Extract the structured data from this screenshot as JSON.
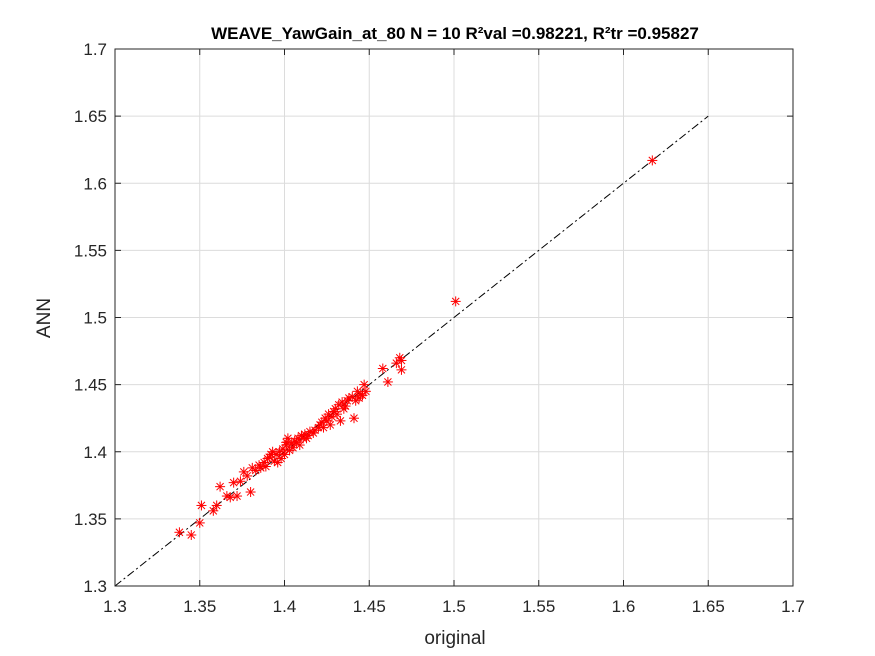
{
  "chart_data": {
    "type": "scatter",
    "title": "WEAVE_YawGain_at_80  N = 10 R²val =0.98221, R²tr =0.95827",
    "xlabel": "original",
    "ylabel": "ANN",
    "xlim": [
      1.3,
      1.7
    ],
    "ylim": [
      1.3,
      1.7
    ],
    "xticks": [
      "1.3",
      "1.35",
      "1.4",
      "1.45",
      "1.5",
      "1.55",
      "1.6",
      "1.65",
      "1.7"
    ],
    "yticks": [
      "1.3",
      "1.35",
      "1.4",
      "1.45",
      "1.5",
      "1.55",
      "1.6",
      "1.65",
      "1.7"
    ],
    "grid": true,
    "colors": {
      "points": "#ff0000",
      "reference_line": "#000000",
      "grid": "#dcdcdc"
    },
    "reference_line": {
      "style": "dash-dot",
      "x": [
        1.3,
        1.65
      ],
      "y": [
        1.3,
        1.65
      ]
    },
    "marker": "asterisk",
    "points": {
      "x": [
        1.338,
        1.345,
        1.35,
        1.351,
        1.358,
        1.36,
        1.362,
        1.366,
        1.368,
        1.37,
        1.372,
        1.374,
        1.376,
        1.378,
        1.38,
        1.381,
        1.383,
        1.385,
        1.386,
        1.388,
        1.389,
        1.39,
        1.391,
        1.392,
        1.393,
        1.394,
        1.395,
        1.396,
        1.397,
        1.398,
        1.399,
        1.4,
        1.401,
        1.401,
        1.402,
        1.403,
        1.404,
        1.405,
        1.406,
        1.407,
        1.408,
        1.409,
        1.41,
        1.411,
        1.412,
        1.413,
        1.414,
        1.415,
        1.417,
        1.418,
        1.42,
        1.421,
        1.422,
        1.423,
        1.424,
        1.425,
        1.426,
        1.427,
        1.428,
        1.429,
        1.43,
        1.431,
        1.432,
        1.433,
        1.434,
        1.435,
        1.436,
        1.437,
        1.438,
        1.44,
        1.441,
        1.442,
        1.443,
        1.444,
        1.445,
        1.446,
        1.447,
        1.448,
        1.458,
        1.461,
        1.466,
        1.468,
        1.469,
        1.469,
        1.501,
        1.617
      ],
      "y": [
        1.34,
        1.338,
        1.347,
        1.36,
        1.356,
        1.36,
        1.374,
        1.367,
        1.366,
        1.377,
        1.367,
        1.378,
        1.385,
        1.382,
        1.37,
        1.388,
        1.386,
        1.39,
        1.388,
        1.392,
        1.389,
        1.395,
        1.396,
        1.398,
        1.4,
        1.393,
        1.398,
        1.392,
        1.4,
        1.395,
        1.402,
        1.398,
        1.405,
        1.407,
        1.41,
        1.401,
        1.406,
        1.403,
        1.408,
        1.407,
        1.41,
        1.405,
        1.412,
        1.41,
        1.413,
        1.41,
        1.412,
        1.415,
        1.414,
        1.416,
        1.418,
        1.42,
        1.422,
        1.418,
        1.425,
        1.423,
        1.428,
        1.42,
        1.426,
        1.43,
        1.432,
        1.428,
        1.435,
        1.423,
        1.437,
        1.432,
        1.434,
        1.438,
        1.44,
        1.441,
        1.425,
        1.438,
        1.445,
        1.44,
        1.443,
        1.442,
        1.45,
        1.445,
        1.462,
        1.452,
        1.466,
        1.47,
        1.468,
        1.461,
        1.512,
        1.617
      ]
    }
  }
}
